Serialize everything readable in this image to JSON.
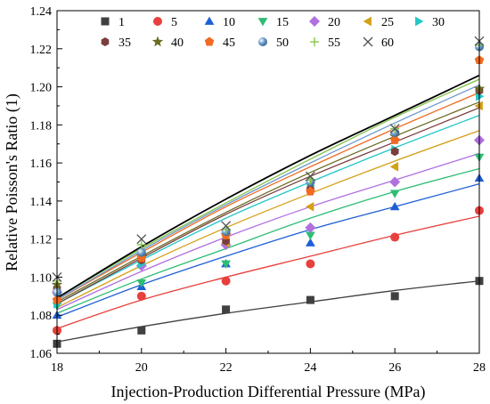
{
  "chart_data": {
    "type": "scatter",
    "title": "",
    "xlabel": "Injection-Production Differential Pressure (MPa)",
    "ylabel": "Relative Poisson's Ratio (1)",
    "xlim": [
      18,
      28
    ],
    "ylim": [
      1.06,
      1.24
    ],
    "xticks": [
      18,
      20,
      22,
      24,
      26,
      28
    ],
    "xtick_labels": [
      "18",
      "20",
      "22",
      "24",
      "26",
      "28"
    ],
    "yticks": [
      1.06,
      1.08,
      1.1,
      1.12,
      1.14,
      1.16,
      1.18,
      1.2,
      1.22,
      1.24
    ],
    "ytick_labels": [
      "1.06",
      "1.08",
      "1.10",
      "1.12",
      "1.14",
      "1.16",
      "1.18",
      "1.20",
      "1.22",
      "1.24"
    ],
    "legend_placement": "top",
    "fit_lines": true,
    "x": [
      18,
      20,
      22,
      24,
      26,
      28
    ],
    "series": [
      {
        "name": "1",
        "marker": "square",
        "color": "#404040",
        "fit_color": "#404040",
        "values": [
          1.065,
          1.072,
          1.083,
          1.088,
          1.09,
          1.098
        ],
        "fit": [
          1.066,
          1.074,
          1.081,
          1.087,
          1.093,
          1.098
        ]
      },
      {
        "name": "5",
        "marker": "circle",
        "color": "#e8403c",
        "fit_color": "#e8403c",
        "values": [
          1.072,
          1.09,
          1.098,
          1.107,
          1.121,
          1.135
        ],
        "fit": [
          1.073,
          1.088,
          1.1,
          1.111,
          1.122,
          1.132
        ]
      },
      {
        "name": "10",
        "marker": "triangle-up",
        "color": "#1f5fd6",
        "fit_color": "#1f5fd6",
        "values": [
          1.08,
          1.095,
          1.107,
          1.118,
          1.137,
          1.152
        ],
        "fit": [
          1.079,
          1.096,
          1.111,
          1.125,
          1.137,
          1.149
        ]
      },
      {
        "name": "15",
        "marker": "triangle-down",
        "color": "#2dbd73",
        "fit_color": "#2dbd73",
        "values": [
          1.085,
          1.097,
          1.107,
          1.122,
          1.144,
          1.163
        ],
        "fit": [
          1.081,
          1.099,
          1.115,
          1.131,
          1.145,
          1.157
        ]
      },
      {
        "name": "20",
        "marker": "diamond",
        "color": "#b070e0",
        "fit_color": "#b070e0",
        "values": [
          1.092,
          1.106,
          1.117,
          1.126,
          1.15,
          1.172
        ],
        "fit": [
          1.083,
          1.103,
          1.121,
          1.137,
          1.151,
          1.165
        ]
      },
      {
        "name": "25",
        "marker": "triangle-left",
        "color": "#d4a017",
        "fit_color": "#d4a017",
        "values": [
          1.093,
          1.11,
          1.118,
          1.137,
          1.158,
          1.19
        ],
        "fit": [
          1.084,
          1.106,
          1.126,
          1.144,
          1.161,
          1.177
        ]
      },
      {
        "name": "30",
        "marker": "triangle-right",
        "color": "#22c7c7",
        "fit_color": "#22c7c7",
        "values": [
          1.086,
          1.107,
          1.123,
          1.148,
          1.167,
          1.195
        ],
        "fit": [
          1.086,
          1.109,
          1.131,
          1.15,
          1.168,
          1.185
        ]
      },
      {
        "name": "35",
        "marker": "hexagon",
        "color": "#7a3e3e",
        "fit_color": "#7a3e3e",
        "values": [
          1.094,
          1.109,
          1.119,
          1.146,
          1.166,
          1.198
        ],
        "fit": [
          1.086,
          1.11,
          1.133,
          1.153,
          1.171,
          1.189
        ]
      },
      {
        "name": "40",
        "marker": "star",
        "color": "#6b6b22",
        "fit_color": "#6b6b22",
        "values": [
          1.096,
          1.111,
          1.122,
          1.15,
          1.174,
          1.199
        ],
        "fit": [
          1.087,
          1.111,
          1.134,
          1.155,
          1.174,
          1.192
        ]
      },
      {
        "name": "45",
        "marker": "pentagon",
        "color": "#f26a21",
        "fit_color": "#f26a21",
        "values": [
          1.088,
          1.11,
          1.122,
          1.145,
          1.172,
          1.214
        ],
        "fit": [
          1.088,
          1.113,
          1.137,
          1.158,
          1.178,
          1.197
        ]
      },
      {
        "name": "50",
        "marker": "sphere",
        "color": "#6a9acb",
        "fit_color": "#6a9acb",
        "values": [
          1.092,
          1.113,
          1.124,
          1.15,
          1.176,
          1.221
        ],
        "fit": [
          1.088,
          1.114,
          1.138,
          1.16,
          1.181,
          1.201
        ]
      },
      {
        "name": "55",
        "marker": "plus",
        "color": "#7ec242",
        "fit_color": "#7ec242",
        "values": [
          1.098,
          1.117,
          1.125,
          1.151,
          1.178,
          1.222
        ],
        "fit": [
          1.089,
          1.115,
          1.139,
          1.162,
          1.184,
          1.204
        ]
      },
      {
        "name": "60",
        "marker": "cross",
        "color": "#505050",
        "fit_color": "#000000",
        "values": [
          1.1,
          1.12,
          1.127,
          1.153,
          1.178,
          1.224
        ],
        "fit": [
          1.089,
          1.116,
          1.141,
          1.164,
          1.185,
          1.206
        ]
      }
    ]
  }
}
